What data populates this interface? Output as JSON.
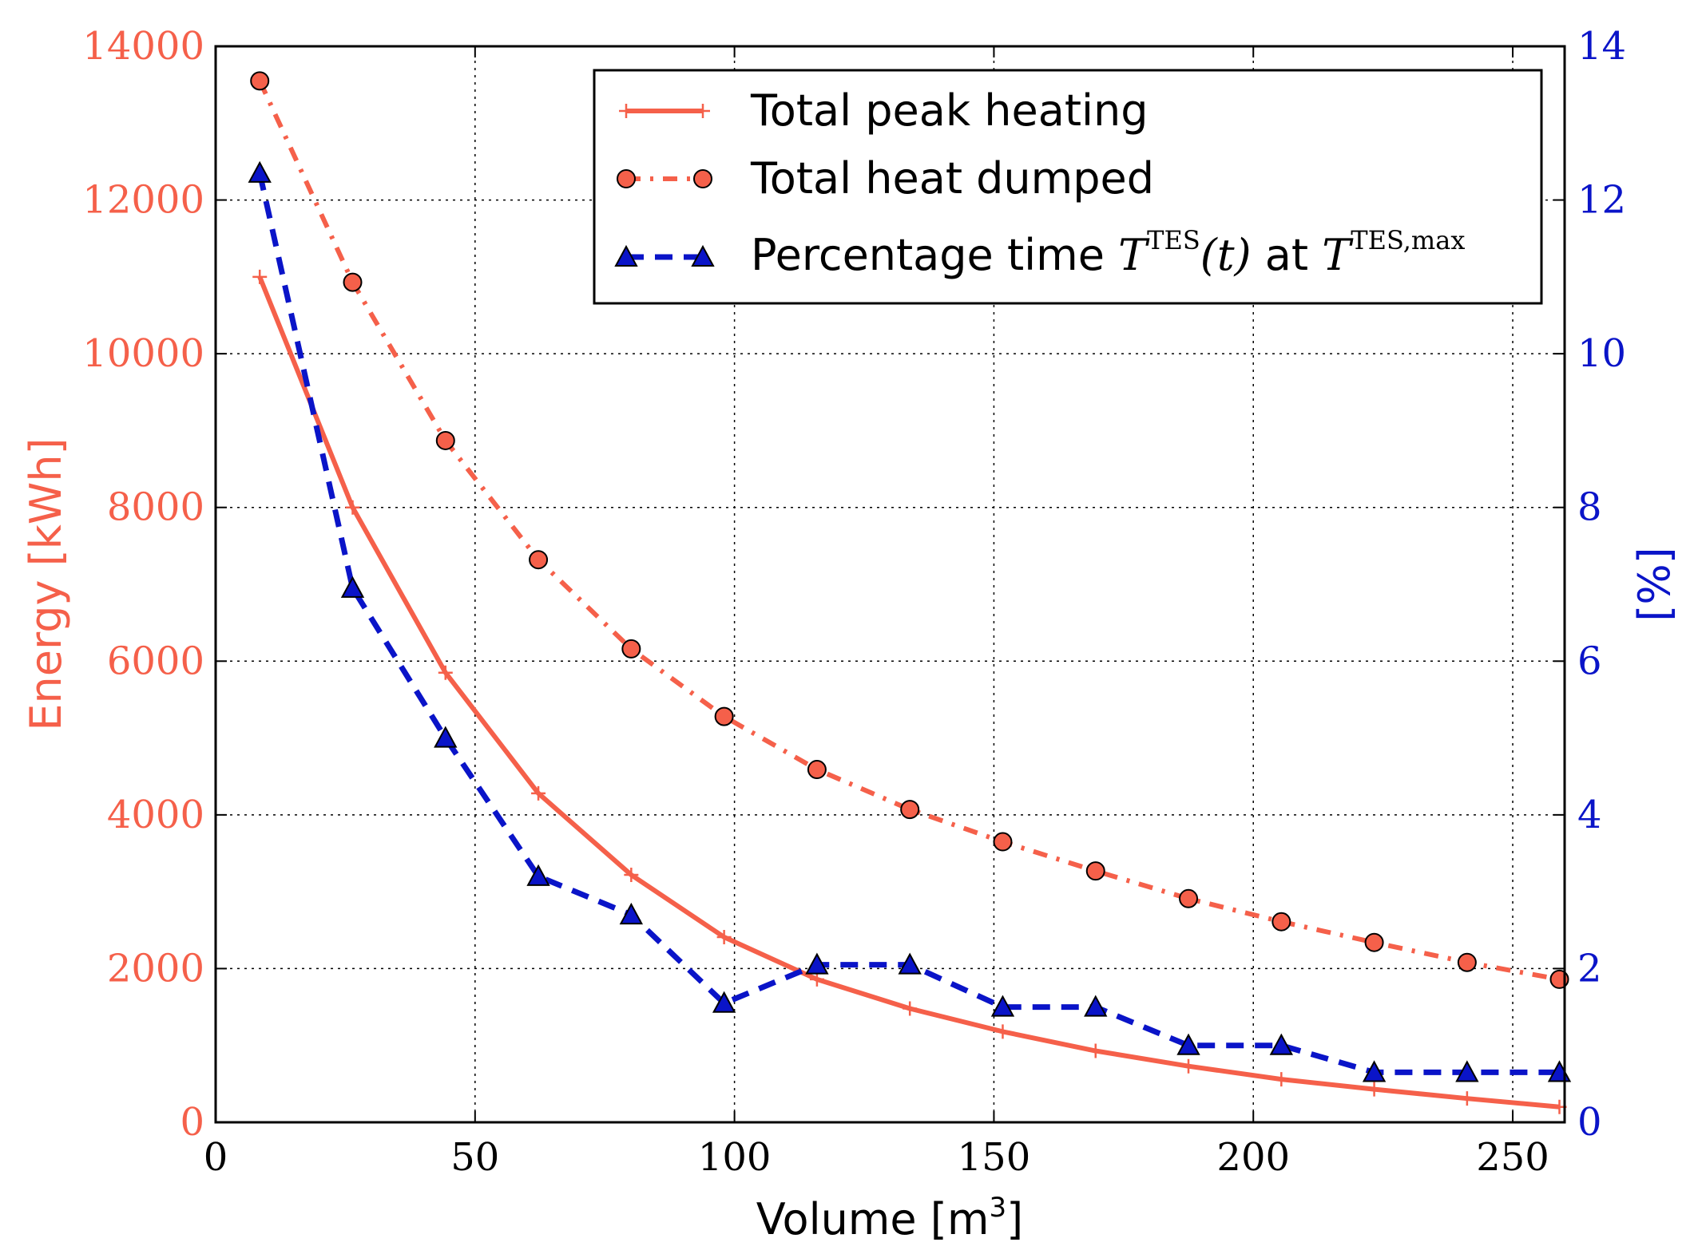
{
  "colors": {
    "peak": "#f5604a",
    "dumped": "#f5604a",
    "percent": "#0a14c8",
    "left_axis": "#f5604a",
    "right_axis": "#0a14c8"
  },
  "chart_data": {
    "type": "line",
    "xlabel_main": "Volume [m",
    "xlabel_sup": "3",
    "xlabel_end": "]",
    "ylabel_left": "Energy [kWh]",
    "ylabel_right": "[%]",
    "xlim": [
      0,
      260
    ],
    "ylim_left": [
      0,
      14000
    ],
    "ylim_right": [
      0,
      14
    ],
    "x_ticks": [
      "0",
      "50",
      "100",
      "150",
      "200",
      "250"
    ],
    "y_left_ticks": [
      "0",
      "2000",
      "4000",
      "6000",
      "8000",
      "10000",
      "12000",
      "14000"
    ],
    "y_right_ticks": [
      "0",
      "2",
      "4",
      "6",
      "8",
      "10",
      "12",
      "14"
    ],
    "grid": true,
    "x": [
      8.5,
      26.4,
      44.3,
      62.2,
      80.1,
      98.0,
      115.9,
      133.8,
      151.7,
      169.6,
      187.5,
      205.4,
      223.3,
      241.2,
      259.0
    ],
    "series": [
      {
        "name": "Total peak heating",
        "axis": "left",
        "style": "solid",
        "marker": "plus",
        "values": [
          11000,
          8000,
          5850,
          4280,
          3220,
          2410,
          1860,
          1480,
          1180,
          930,
          730,
          560,
          430,
          310,
          200
        ]
      },
      {
        "name": "Total heat dumped",
        "axis": "left",
        "style": "dashdot",
        "marker": "circle",
        "values": [
          13550,
          10930,
          8870,
          7320,
          6160,
          5280,
          4590,
          4070,
          3650,
          3270,
          2910,
          2610,
          2340,
          2080,
          1860
        ]
      },
      {
        "name": "Percentage time",
        "axis": "right",
        "style": "dashed",
        "marker": "triangle",
        "values": [
          12.35,
          6.95,
          5.0,
          3.2,
          2.7,
          1.55,
          2.05,
          2.05,
          1.5,
          1.5,
          1.0,
          1.0,
          0.65,
          0.65,
          0.65
        ]
      }
    ],
    "legend": {
      "placement": "top-right",
      "entries": [
        {
          "label": "Total peak heating"
        },
        {
          "label": "Total heat dumped"
        },
        {
          "label_prefix": "Percentage time ",
          "math_var": "T",
          "sup1": "TES",
          "math_arg": "(t)",
          "mid": " at ",
          "math_var2": "T",
          "sup2": "TES,max"
        }
      ]
    }
  }
}
